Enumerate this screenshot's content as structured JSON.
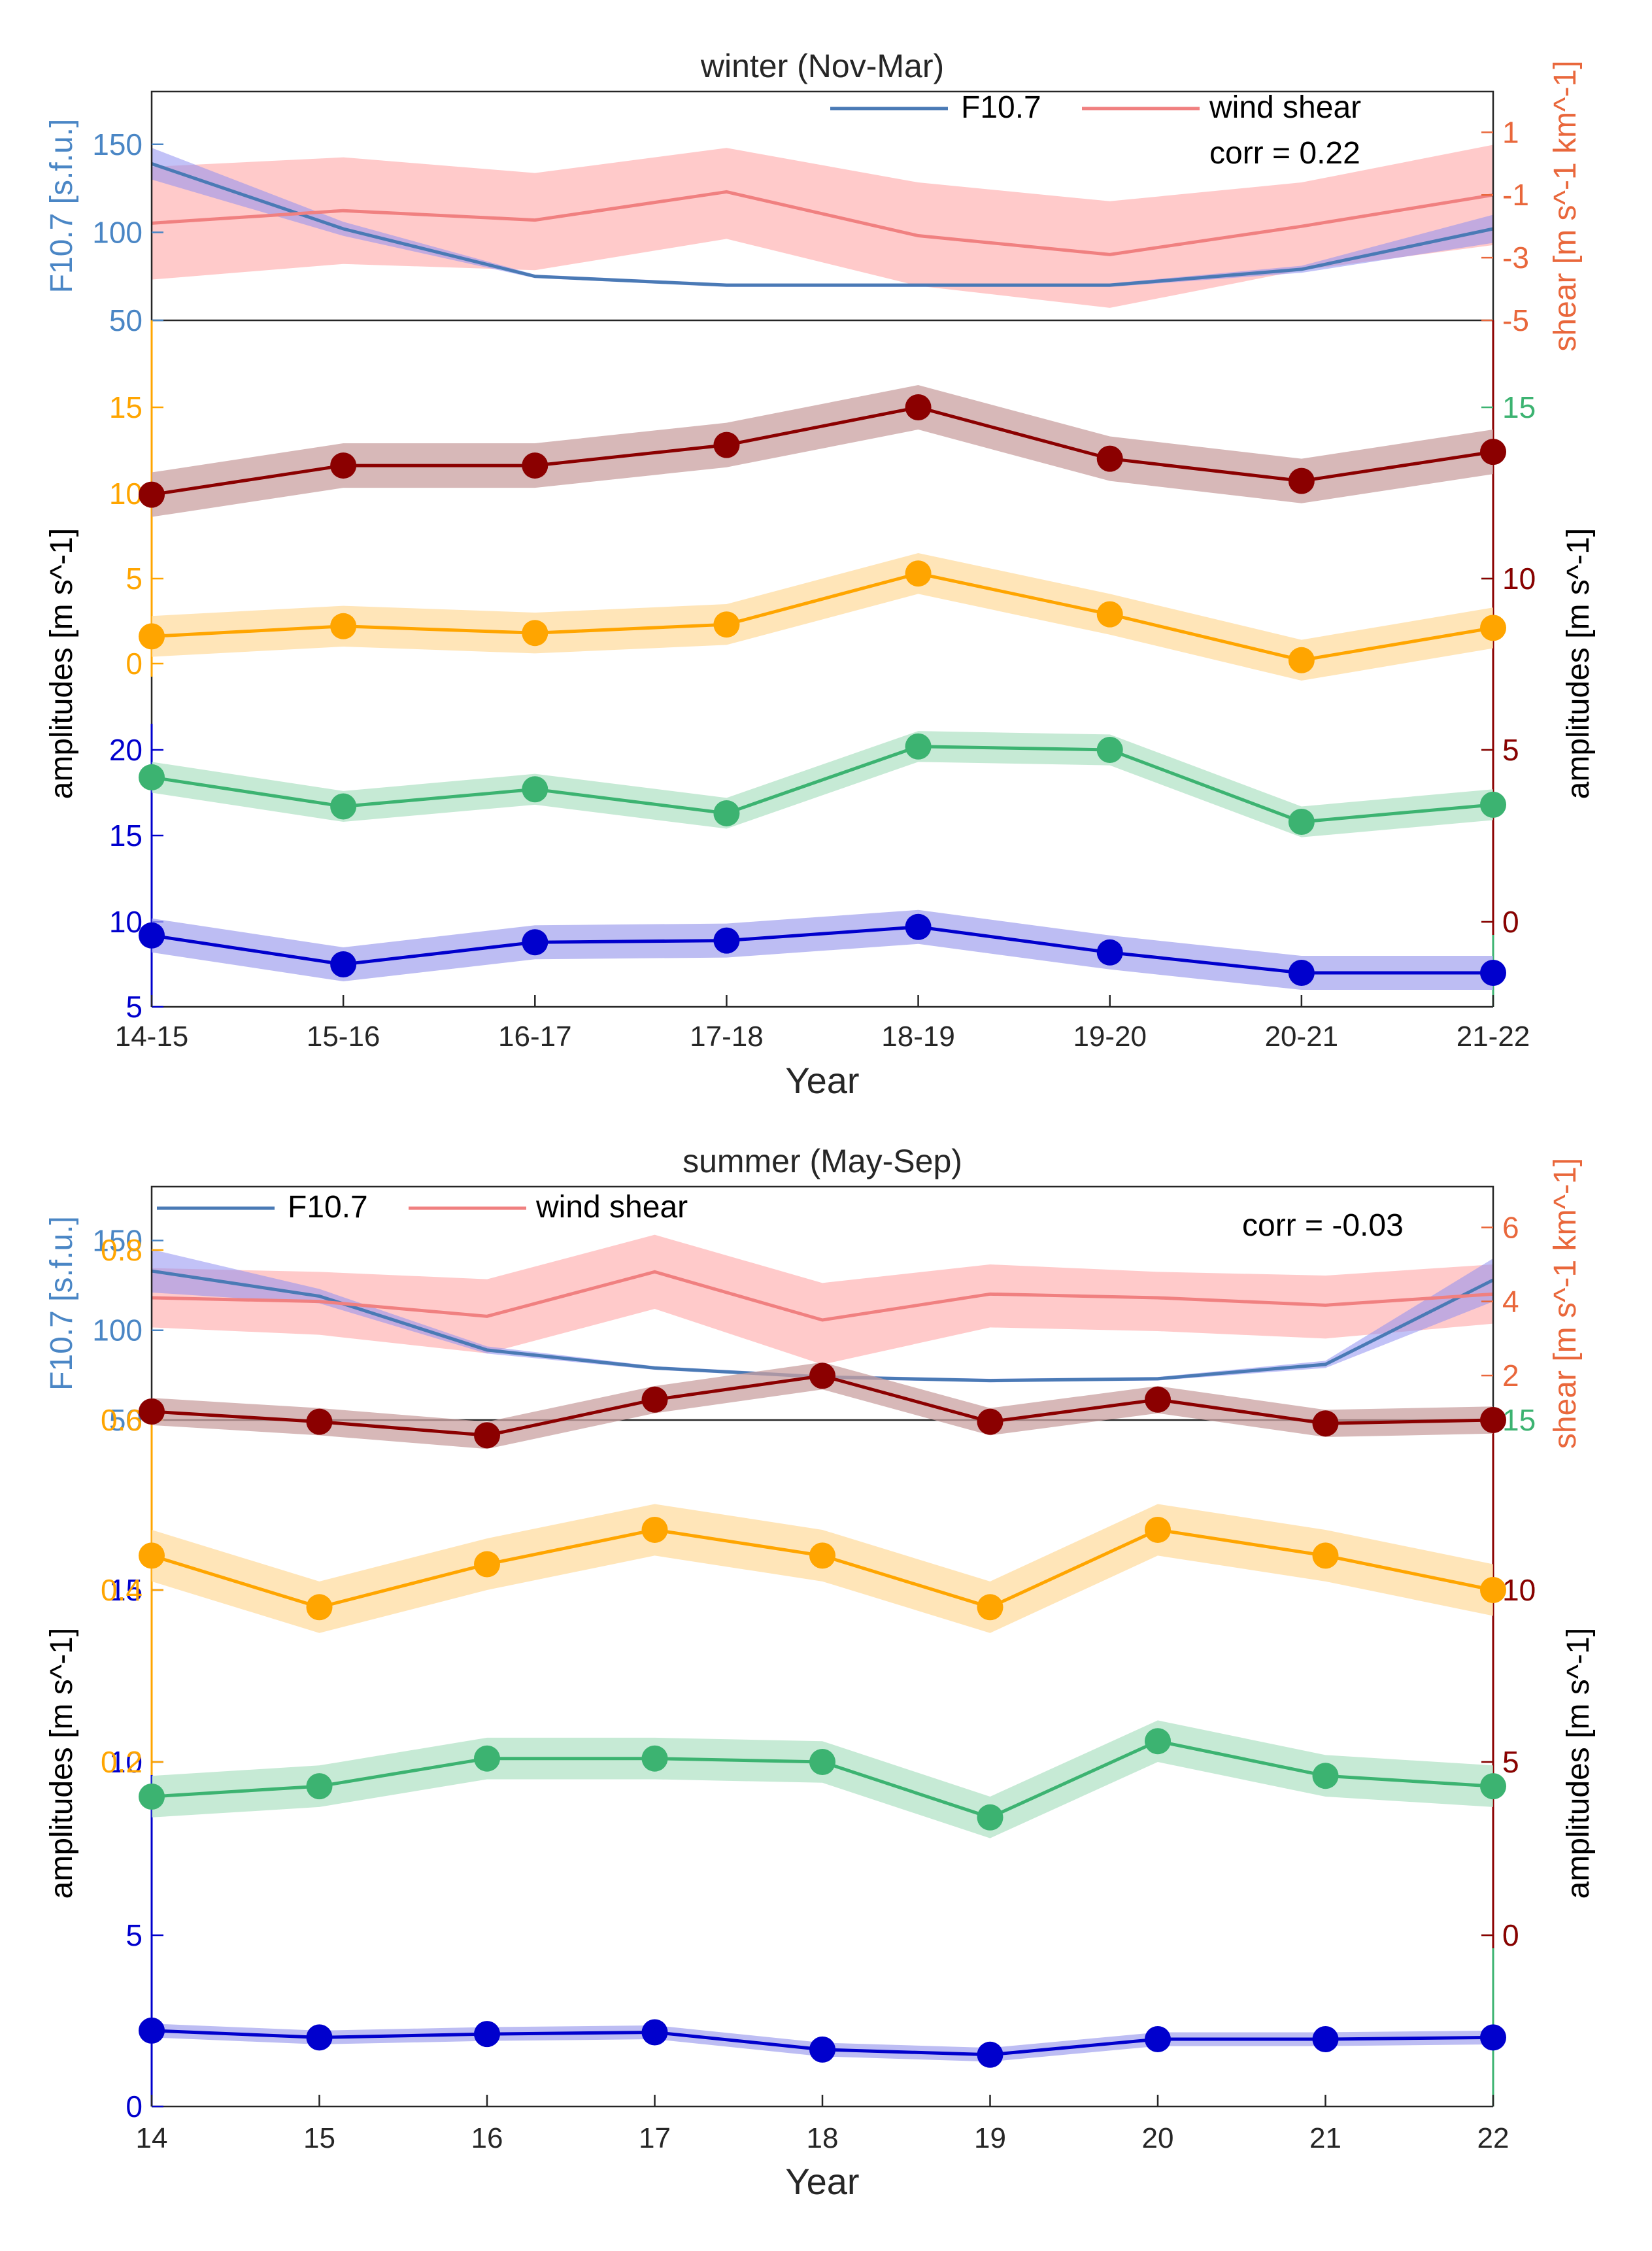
{
  "chart_data": [
    {
      "type": "line",
      "title": "winter (Nov-Mar)",
      "xlabel": "Year",
      "x": [
        "14-15",
        "15-16",
        "16-17",
        "17-18",
        "18-19",
        "19-20",
        "20-21",
        "21-22"
      ],
      "top": {
        "left_ylabel": "F10.7 [s.f.u.]",
        "right_ylabel": "shear [m s^-1 km^-1]",
        "left_ylim": [
          50,
          180
        ],
        "left_ticks": [
          "50",
          "100",
          "150"
        ],
        "right_ticks": [
          "-5",
          "-3",
          "-1",
          "1"
        ],
        "legend": [
          "F10.7",
          "wind shear"
        ],
        "corr": "corr = 0.22",
        "series": [
          {
            "name": "F10.7",
            "axis": "left",
            "values": [
              139,
              102,
              75,
              70,
              70,
              70,
              79,
              102
            ],
            "upper": [
              148,
              106,
              76,
              71,
              71,
              71,
              81,
              110
            ],
            "lower": [
              130,
              98,
              74,
              69,
              69,
              69,
              77,
              94
            ]
          },
          {
            "name": "wind shear",
            "axis": "right",
            "values": [
              -1.9,
              -1.5,
              -1.8,
              -0.9,
              -2.3,
              -2.9,
              -2.0,
              -1.0
            ],
            "upper": [
              -0.1,
              0.2,
              -0.3,
              0.5,
              -0.6,
              -1.2,
              -0.6,
              0.6
            ],
            "lower": [
              -3.7,
              -3.2,
              -3.4,
              -2.4,
              -3.9,
              -4.6,
              -3.4,
              -2.6
            ]
          }
        ]
      },
      "bottom": {
        "left_ylabel": "amplitudes [m s^-1]",
        "right_ylabel": "amplitudes [m s^-1]",
        "left_ticks": [
          "5",
          "10",
          "15",
          "20",
          "0",
          "5",
          "10",
          "15"
        ],
        "right_ticks": [
          "0",
          "5",
          "10",
          "15",
          "0",
          "5",
          "10"
        ],
        "series": [
          {
            "name": "",
            "color": "#8b0000",
            "values": [
              4.9,
              6.6,
              6.6,
              7.8,
              10.0,
              7.0,
              5.7,
              7.4
            ],
            "band": 1.3
          },
          {
            "name": "",
            "color": "#ffa500",
            "values": [
              1.6,
              2.2,
              1.8,
              2.3,
              5.3,
              2.9,
              0.2,
              2.1
            ],
            "band": 1.2
          },
          {
            "name": "",
            "color": "#3cb371",
            "values": [
              8.4,
              6.7,
              7.7,
              6.3,
              10.2,
              10.0,
              5.8,
              6.8
            ],
            "band": 0.9
          },
          {
            "name": "",
            "color": "#0000cd",
            "values": [
              9.2,
              7.5,
              8.8,
              8.9,
              9.7,
              8.2,
              7.0,
              7.0
            ],
            "band": 1.0
          }
        ]
      }
    },
    {
      "type": "line",
      "title": "summer (May-Sep)",
      "xlabel": "Year",
      "x": [
        "14",
        "15",
        "16",
        "17",
        "18",
        "19",
        "20",
        "21",
        "22"
      ],
      "top": {
        "left_ylabel": "F10.7 [s.f.u.]",
        "right_ylabel": "shear [m s^-1 km^-1]",
        "left_ylim": [
          50,
          180
        ],
        "left_ticks": [
          "50",
          "100",
          "150"
        ],
        "right_ticks": [
          "2",
          "4",
          "6"
        ],
        "legend": [
          "F10.7",
          "wind shear"
        ],
        "corr": "corr = -0.03",
        "series": [
          {
            "name": "F10.7",
            "axis": "left",
            "values": [
              133,
              119,
              89,
              79,
              74,
              72,
              73,
              81,
              128
            ],
            "upper": [
              145,
              123,
              91,
              80,
              75,
              73,
              74,
              83,
              140
            ],
            "lower": [
              121,
              115,
              87,
              78,
              73,
              71,
              72,
              79,
              116
            ]
          },
          {
            "name": "wind shear",
            "axis": "right",
            "values": [
              4.1,
              4.0,
              3.6,
              4.8,
              3.5,
              4.2,
              4.1,
              3.9,
              4.2
            ],
            "upper": [
              4.9,
              4.8,
              4.6,
              5.8,
              4.5,
              5.0,
              4.8,
              4.7,
              5.0
            ],
            "lower": [
              3.3,
              3.1,
              2.6,
              3.8,
              2.3,
              3.3,
              3.2,
              3.0,
              3.4
            ]
          }
        ]
      },
      "bottom": {
        "left_ylabel": "amplitudes [m s^-1]",
        "right_ylabel": "amplitudes [m s^-1]",
        "left_ticks": [
          "0",
          "5",
          "10",
          "15",
          "0.2",
          "0.4",
          "0.6",
          "0.8"
        ],
        "right_ticks": [
          "0",
          "5",
          "10",
          "15",
          "0",
          "5",
          "10"
        ],
        "series": [
          {
            "name": "",
            "color": "#8b0000",
            "values": [
              10.5,
              9.9,
              9.1,
              11.2,
              12.6,
              9.9,
              11.2,
              9.8,
              10.0
            ],
            "band": 0.8
          },
          {
            "name": "",
            "color": "#ffa500",
            "values": [
              0.44,
              0.38,
              0.43,
              0.47,
              0.44,
              0.38,
              0.47,
              0.44,
              0.4
            ],
            "band": 0.03
          },
          {
            "name": "",
            "color": "#3cb371",
            "values": [
              9.0,
              9.3,
              10.1,
              10.1,
              10.0,
              8.4,
              10.6,
              9.6,
              9.3
            ],
            "band": 0.6
          },
          {
            "name": "",
            "color": "#0000cd",
            "values": [
              4.4,
              4.0,
              4.2,
              4.3,
              3.3,
              3.0,
              3.9,
              3.9,
              4.0
            ],
            "band": 0.4
          }
        ]
      }
    }
  ]
}
